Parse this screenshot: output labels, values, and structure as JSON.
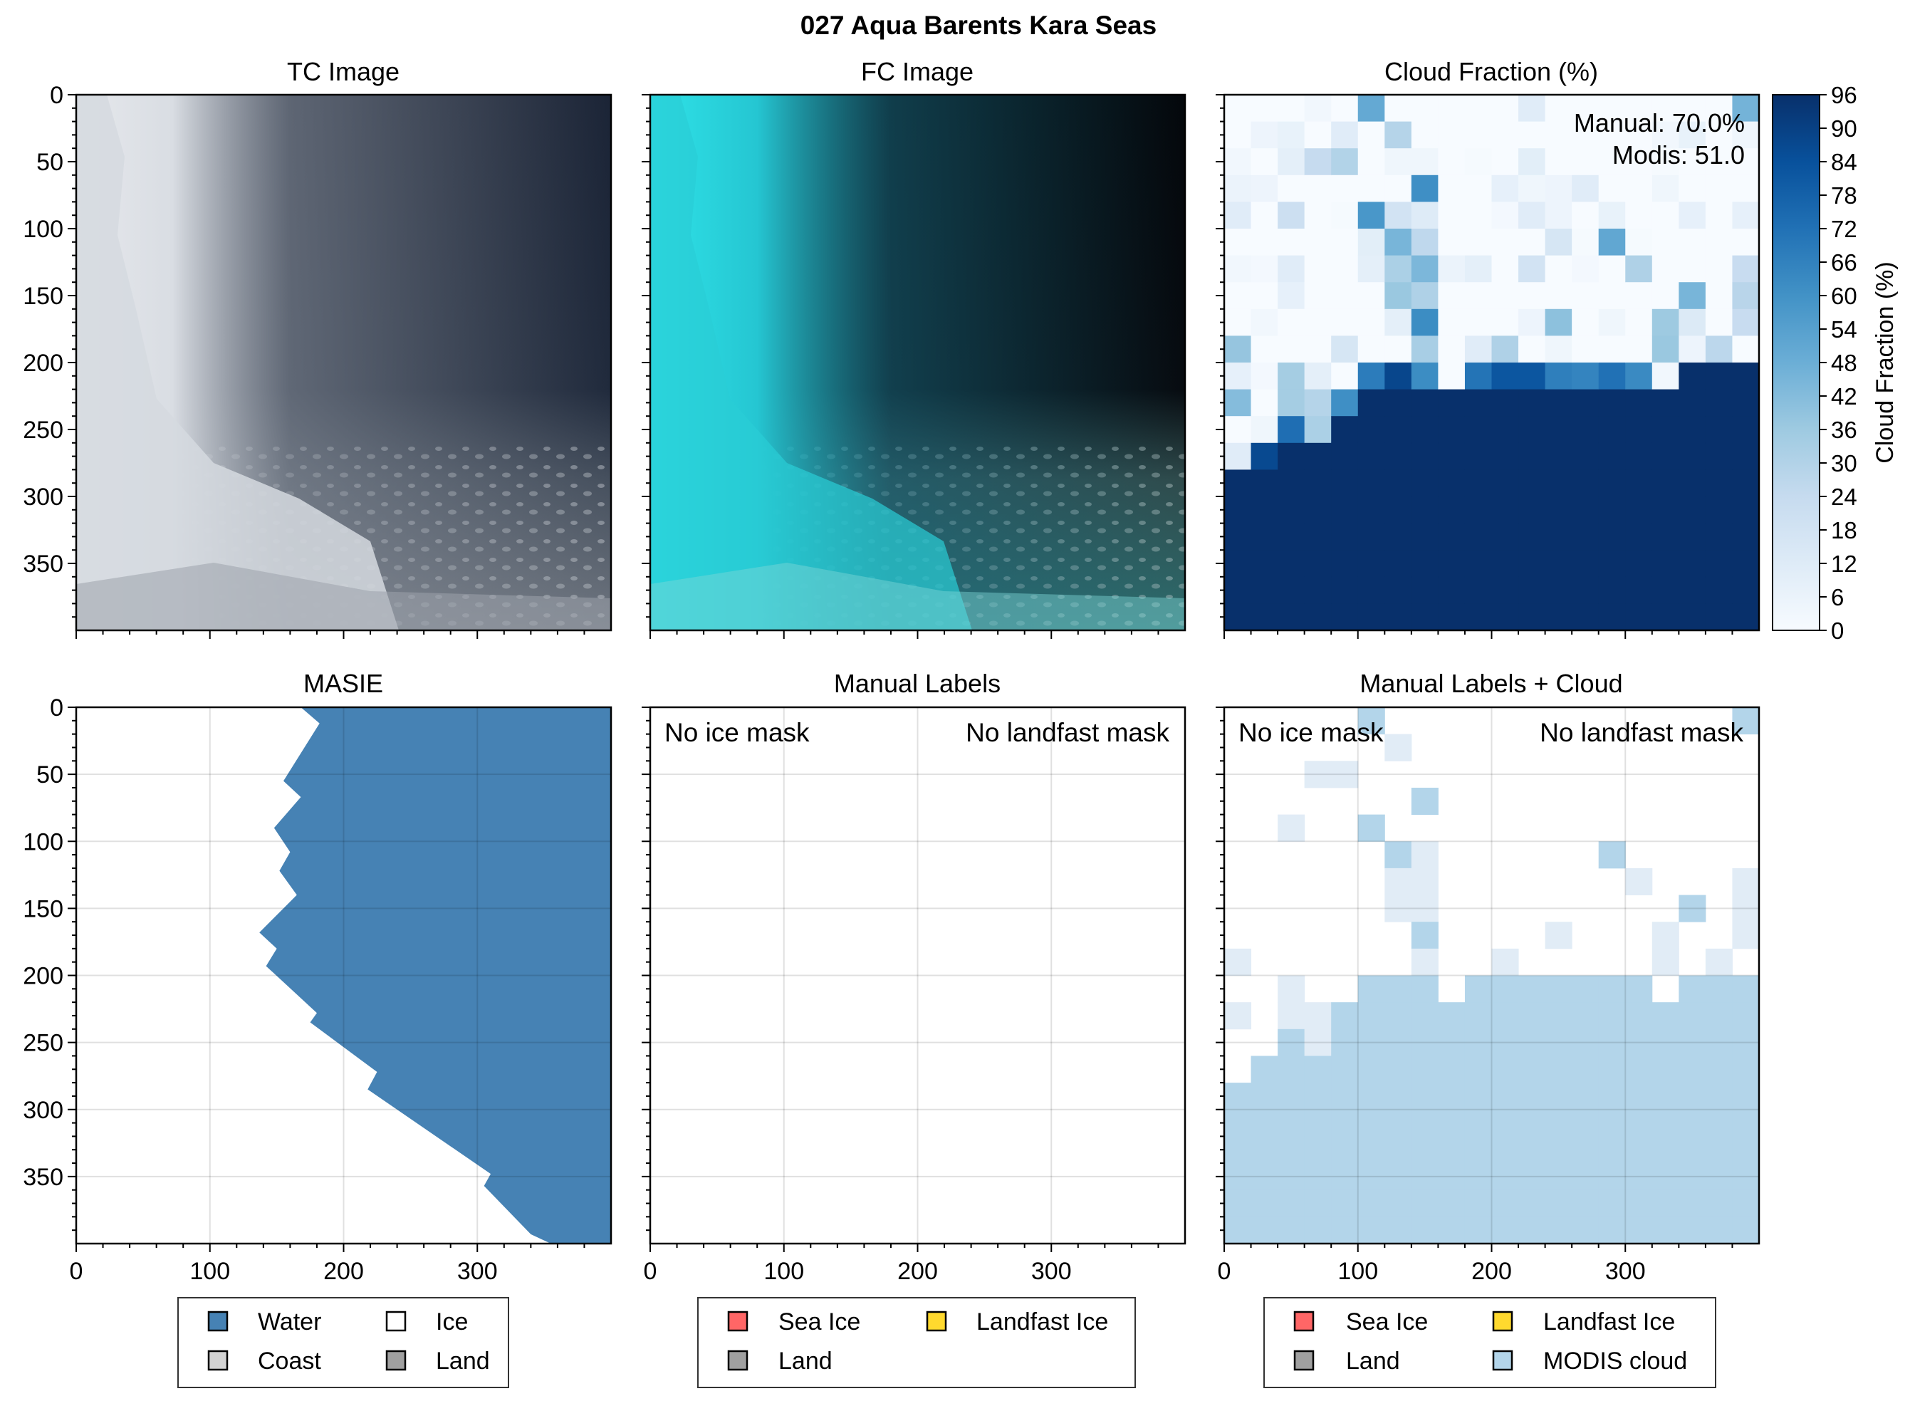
{
  "figure": {
    "suptitle": "027 Aqua Barents Kara Seas"
  },
  "colors": {
    "water": "#4682b4",
    "coast": "#d3d3d3",
    "ice": "#ffffff",
    "land": "#a0a0a0",
    "sea_ice": "#ff6666",
    "landfast_ice": "#ffd92e",
    "modis_cloud": "#b3d5ea",
    "tc_dark": "#1c2536",
    "fc_dark": "#05080d",
    "fc_cyan": "#20d4dc",
    "cf_max": "#08306b"
  },
  "chart_data": [
    {
      "id": "tc",
      "type": "image",
      "title": "TC Image",
      "xlim": [
        0,
        400
      ],
      "ylim": [
        400,
        0
      ],
      "xticks": [],
      "yticks": [
        "0",
        "50",
        "100",
        "150",
        "200",
        "250",
        "300",
        "350"
      ]
    },
    {
      "id": "fc",
      "type": "image",
      "title": "FC Image",
      "xlim": [
        0,
        400
      ],
      "ylim": [
        400,
        0
      ],
      "xticks": [],
      "yticks": []
    },
    {
      "id": "cloud",
      "type": "heatmap",
      "title": "Cloud Fraction (%)",
      "xlim": [
        0,
        400
      ],
      "ylim": [
        400,
        0
      ],
      "cell_size": 20,
      "annotation_lines": [
        "Manual: 70.0%",
        "Modis: 51.0"
      ],
      "colorbar": {
        "label": "Cloud Fraction (%)",
        "ticks": [
          "0",
          "6",
          "12",
          "18",
          "24",
          "30",
          "36",
          "42",
          "48",
          "54",
          "60",
          "66",
          "72",
          "78",
          "84",
          "90",
          "96"
        ],
        "min": 0,
        "max": 96
      },
      "boundary_rows": [
        14,
        14,
        13,
        13,
        12,
        11,
        11,
        11,
        11,
        11,
        11,
        11,
        11,
        11,
        11,
        11,
        11,
        10,
        10,
        10
      ]
    },
    {
      "id": "masie",
      "type": "area",
      "title": "MASIE",
      "xlim": [
        0,
        400
      ],
      "ylim": [
        400,
        0
      ],
      "xticks": [
        "0",
        "100",
        "200",
        "300"
      ],
      "yticks": [
        "0",
        "50",
        "100",
        "150",
        "200",
        "250",
        "300",
        "350"
      ],
      "water_boundary": [
        {
          "x": 168,
          "y": 0
        },
        {
          "x": 182,
          "y": 12
        },
        {
          "x": 155,
          "y": 55
        },
        {
          "x": 168,
          "y": 67
        },
        {
          "x": 148,
          "y": 90
        },
        {
          "x": 160,
          "y": 108
        },
        {
          "x": 152,
          "y": 122
        },
        {
          "x": 165,
          "y": 140
        },
        {
          "x": 137,
          "y": 168
        },
        {
          "x": 150,
          "y": 180
        },
        {
          "x": 142,
          "y": 193
        },
        {
          "x": 180,
          "y": 228
        },
        {
          "x": 175,
          "y": 235
        },
        {
          "x": 225,
          "y": 272
        },
        {
          "x": 218,
          "y": 285
        },
        {
          "x": 310,
          "y": 348
        },
        {
          "x": 305,
          "y": 357
        },
        {
          "x": 340,
          "y": 393
        },
        {
          "x": 355,
          "y": 400
        }
      ],
      "legend": [
        "Water",
        "Coast",
        "Ice",
        "Land"
      ]
    },
    {
      "id": "manual",
      "type": "image",
      "title": "Manual Labels",
      "xlim": [
        0,
        400
      ],
      "ylim": [
        400,
        0
      ],
      "xticks": [
        "0",
        "100",
        "200",
        "300"
      ],
      "yticks": [],
      "annotations": [
        "No ice mask",
        "No landfast mask"
      ],
      "legend": [
        "Sea Ice",
        "Landfast Ice",
        "Land"
      ]
    },
    {
      "id": "manual_cloud",
      "type": "heatmap",
      "title": "Manual Labels + Cloud",
      "xlim": [
        0,
        400
      ],
      "ylim": [
        400,
        0
      ],
      "xticks": [
        "0",
        "100",
        "200",
        "300"
      ],
      "yticks": [],
      "annotations": [
        "No ice mask",
        "No landfast mask"
      ],
      "legend": [
        "Sea Ice",
        "Landfast Ice",
        "Land",
        "MODIS cloud"
      ]
    }
  ]
}
